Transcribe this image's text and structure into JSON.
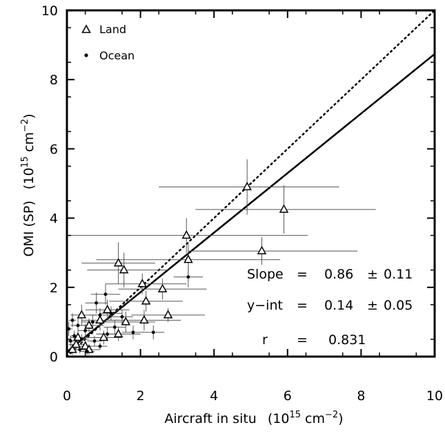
{
  "chart_data": {
    "type": "scatter",
    "xlabel": "Aircraft in situ",
    "xlabel_unit": "(10",
    "xlabel_exp": "15",
    "xlabel_unit_rest": " cm",
    "xlabel_unit_exp": "−2",
    "xlabel_unit_close": ")",
    "ylabel": "OMI (SP)",
    "ylabel_unit": "(10",
    "ylabel_exp": "15",
    "ylabel_unit_rest": " cm",
    "ylabel_unit_exp": "−2",
    "ylabel_unit_close": ")",
    "xlim": [
      0,
      10
    ],
    "ylim": [
      0,
      10
    ],
    "xticks": [
      "0",
      "2",
      "4",
      "6",
      "8",
      "10"
    ],
    "yticks": [
      "0",
      "2",
      "4",
      "6",
      "8",
      "10"
    ],
    "xtick_values": [
      0,
      2,
      4,
      6,
      8,
      10
    ],
    "ytick_values": [
      0,
      2,
      4,
      6,
      8,
      10
    ],
    "legend": {
      "placement": "top-left",
      "items": [
        {
          "label": "Land",
          "marker": "triangle"
        },
        {
          "label": "Ocean",
          "marker": "dot"
        }
      ]
    },
    "series": [
      {
        "name": "Land",
        "marker": "triangle",
        "points": [
          {
            "x": 4.9,
            "y": 4.9,
            "xerr_lo": 2.4,
            "xerr_hi": 2.5,
            "yerr_lo": 0.8,
            "yerr_hi": 0.8
          },
          {
            "x": 5.9,
            "y": 4.25,
            "xerr_lo": 2.4,
            "xerr_hi": 2.5,
            "yerr_lo": 0.7,
            "yerr_hi": 0.7
          },
          {
            "x": 5.3,
            "y": 3.05,
            "xerr_lo": 2.0,
            "xerr_hi": 2.6,
            "yerr_lo": 0.4,
            "yerr_hi": 0.4
          },
          {
            "x": 3.25,
            "y": 3.5,
            "xerr_lo": 3.25,
            "xerr_hi": 3.3,
            "yerr_lo": 0.5,
            "yerr_hi": 0.5
          },
          {
            "x": 3.3,
            "y": 2.8,
            "xerr_lo": 2.5,
            "xerr_hi": 2.5,
            "yerr_lo": 0.5,
            "yerr_hi": 0.5
          },
          {
            "x": 1.4,
            "y": 2.7,
            "xerr_lo": 1.0,
            "xerr_hi": 1.0,
            "yerr_lo": 0.6,
            "yerr_hi": 0.6
          },
          {
            "x": 1.55,
            "y": 2.5,
            "xerr_lo": 1.0,
            "xerr_hi": 1.2,
            "yerr_lo": 0.5,
            "yerr_hi": 0.5
          },
          {
            "x": 2.05,
            "y": 2.1,
            "xerr_lo": 1.0,
            "xerr_hi": 1.2,
            "yerr_lo": 0.3,
            "yerr_hi": 0.3
          },
          {
            "x": 2.6,
            "y": 1.95,
            "xerr_lo": 1.2,
            "xerr_hi": 1.2,
            "yerr_lo": 0.3,
            "yerr_hi": 0.3
          },
          {
            "x": 2.15,
            "y": 1.6,
            "xerr_lo": 1.0,
            "xerr_hi": 1.0,
            "yerr_lo": 0.3,
            "yerr_hi": 0.3
          },
          {
            "x": 2.1,
            "y": 1.05,
            "xerr_lo": 1.0,
            "xerr_hi": 1.0,
            "yerr_lo": 0.3,
            "yerr_hi": 0.3
          },
          {
            "x": 2.75,
            "y": 1.2,
            "xerr_lo": 1.0,
            "xerr_hi": 1.0,
            "yerr_lo": 0.2,
            "yerr_hi": 0.2
          },
          {
            "x": 1.6,
            "y": 1.0,
            "xerr_lo": 0.8,
            "xerr_hi": 0.8,
            "yerr_lo": 0.3,
            "yerr_hi": 0.3
          },
          {
            "x": 1.1,
            "y": 1.35,
            "xerr_lo": 0.6,
            "xerr_hi": 0.6,
            "yerr_lo": 0.3,
            "yerr_hi": 0.3
          },
          {
            "x": 0.4,
            "y": 1.2,
            "xerr_lo": 0.3,
            "xerr_hi": 0.4,
            "yerr_lo": 0.3,
            "yerr_hi": 0.3
          },
          {
            "x": 0.9,
            "y": 1.05,
            "xerr_lo": 0.5,
            "xerr_hi": 0.5,
            "yerr_lo": 0.3,
            "yerr_hi": 0.3
          },
          {
            "x": 0.6,
            "y": 0.9,
            "xerr_lo": 0.4,
            "xerr_hi": 0.4,
            "yerr_lo": 0.2,
            "yerr_hi": 0.2
          },
          {
            "x": 1.4,
            "y": 0.65,
            "xerr_lo": 0.6,
            "xerr_hi": 0.6,
            "yerr_lo": 0.2,
            "yerr_hi": 0.2
          },
          {
            "x": 1.0,
            "y": 0.55,
            "xerr_lo": 0.4,
            "xerr_hi": 0.5,
            "yerr_lo": 0.2,
            "yerr_hi": 0.2
          },
          {
            "x": 0.3,
            "y": 0.55,
            "xerr_lo": 0.2,
            "xerr_hi": 0.3,
            "yerr_lo": 0.2,
            "yerr_hi": 0.2
          },
          {
            "x": 0.5,
            "y": 0.3,
            "xerr_lo": 0.3,
            "xerr_hi": 0.3,
            "yerr_lo": 0.2,
            "yerr_hi": 0.2
          },
          {
            "x": 0.15,
            "y": 0.2,
            "xerr_lo": 0.1,
            "xerr_hi": 0.2,
            "yerr_lo": 0.15,
            "yerr_hi": 0.15
          },
          {
            "x": 0.6,
            "y": 0.2,
            "xerr_lo": 0.3,
            "xerr_hi": 0.3,
            "yerr_lo": 0.15,
            "yerr_hi": 0.15
          },
          {
            "x": 0.25,
            "y": 0.35,
            "xerr_lo": 0.2,
            "xerr_hi": 0.2,
            "yerr_lo": 0.15,
            "yerr_hi": 0.15
          }
        ]
      },
      {
        "name": "Ocean",
        "marker": "dot",
        "points": [
          {
            "x": 3.3,
            "y": 2.3,
            "xerr_lo": 0.4,
            "xerr_hi": 0.4,
            "yerr_lo": 0.3,
            "yerr_hi": 0.3
          },
          {
            "x": 1.05,
            "y": 1.8,
            "xerr_lo": 0.4,
            "xerr_hi": 0.4,
            "yerr_lo": 0.3,
            "yerr_hi": 0.3
          },
          {
            "x": 0.8,
            "y": 1.55,
            "xerr_lo": 0.3,
            "xerr_hi": 0.3,
            "yerr_lo": 0.3,
            "yerr_hi": 0.3
          },
          {
            "x": 1.2,
            "y": 1.25,
            "xerr_lo": 0.3,
            "xerr_hi": 0.3,
            "yerr_lo": 0.2,
            "yerr_hi": 0.2
          },
          {
            "x": 1.5,
            "y": 1.15,
            "xerr_lo": 0.3,
            "xerr_hi": 0.3,
            "yerr_lo": 0.2,
            "yerr_hi": 0.2
          },
          {
            "x": 0.9,
            "y": 1.2,
            "xerr_lo": 0.3,
            "xerr_hi": 0.3,
            "yerr_lo": 0.2,
            "yerr_hi": 0.2
          },
          {
            "x": 0.7,
            "y": 1.0,
            "xerr_lo": 0.3,
            "xerr_hi": 0.3,
            "yerr_lo": 0.2,
            "yerr_hi": 0.2
          },
          {
            "x": 1.3,
            "y": 0.85,
            "xerr_lo": 0.3,
            "xerr_hi": 0.3,
            "yerr_lo": 0.2,
            "yerr_hi": 0.2
          },
          {
            "x": 1.8,
            "y": 0.7,
            "xerr_lo": 0.3,
            "xerr_hi": 0.3,
            "yerr_lo": 0.2,
            "yerr_hi": 0.2
          },
          {
            "x": 2.35,
            "y": 0.7,
            "xerr_lo": 0.3,
            "xerr_hi": 0.3,
            "yerr_lo": 0.2,
            "yerr_hi": 0.2
          },
          {
            "x": 1.1,
            "y": 0.65,
            "xerr_lo": 0.3,
            "xerr_hi": 0.3,
            "yerr_lo": 0.2,
            "yerr_hi": 0.2
          },
          {
            "x": 0.5,
            "y": 0.75,
            "xerr_lo": 0.2,
            "xerr_hi": 0.2,
            "yerr_lo": 0.2,
            "yerr_hi": 0.2
          },
          {
            "x": 0.3,
            "y": 0.9,
            "xerr_lo": 0.2,
            "xerr_hi": 0.2,
            "yerr_lo": 0.2,
            "yerr_hi": 0.2
          },
          {
            "x": 0.15,
            "y": 1.05,
            "xerr_lo": 0.1,
            "xerr_hi": 0.1,
            "yerr_lo": 0.2,
            "yerr_hi": 0.2
          },
          {
            "x": 0.05,
            "y": 0.8,
            "xerr_lo": 0.05,
            "xerr_hi": 0.1,
            "yerr_lo": 0.2,
            "yerr_hi": 0.2
          },
          {
            "x": 0.75,
            "y": 0.45,
            "xerr_lo": 0.2,
            "xerr_hi": 0.2,
            "yerr_lo": 0.15,
            "yerr_hi": 0.15
          },
          {
            "x": 0.4,
            "y": 0.5,
            "xerr_lo": 0.2,
            "xerr_hi": 0.2,
            "yerr_lo": 0.15,
            "yerr_hi": 0.15
          },
          {
            "x": 0.1,
            "y": 0.45,
            "xerr_lo": 0.1,
            "xerr_hi": 0.1,
            "yerr_lo": 0.15,
            "yerr_hi": 0.15
          },
          {
            "x": 0.55,
            "y": 0.15,
            "xerr_lo": 0.2,
            "xerr_hi": 0.2,
            "yerr_lo": 0.1,
            "yerr_hi": 0.1
          },
          {
            "x": 0.35,
            "y": 0.2,
            "xerr_lo": 0.2,
            "xerr_hi": 0.2,
            "yerr_lo": 0.1,
            "yerr_hi": 0.1
          },
          {
            "x": 0.9,
            "y": 0.3,
            "xerr_lo": 0.2,
            "xerr_hi": 0.2,
            "yerr_lo": 0.1,
            "yerr_hi": 0.1
          },
          {
            "x": 0.2,
            "y": 0.6,
            "xerr_lo": 0.1,
            "xerr_hi": 0.1,
            "yerr_lo": 0.15,
            "yerr_hi": 0.15
          }
        ]
      }
    ],
    "lines": [
      {
        "kind": "fit",
        "style": "solid",
        "slope": 0.86,
        "intercept": 0.14
      },
      {
        "kind": "one-to-one",
        "style": "dotted",
        "slope": 1.0,
        "intercept": 0.0
      }
    ],
    "annotations": [
      {
        "label": "Slope",
        "eq": "=",
        "value": "0.86",
        "pm": "±",
        "err": "0.11"
      },
      {
        "label": "y−int",
        "eq": "=",
        "value": "0.14",
        "pm": "±",
        "err": "0.05"
      },
      {
        "label": "r",
        "eq": "=",
        "value": "0.831",
        "pm": "",
        "err": ""
      }
    ],
    "grid": false
  }
}
